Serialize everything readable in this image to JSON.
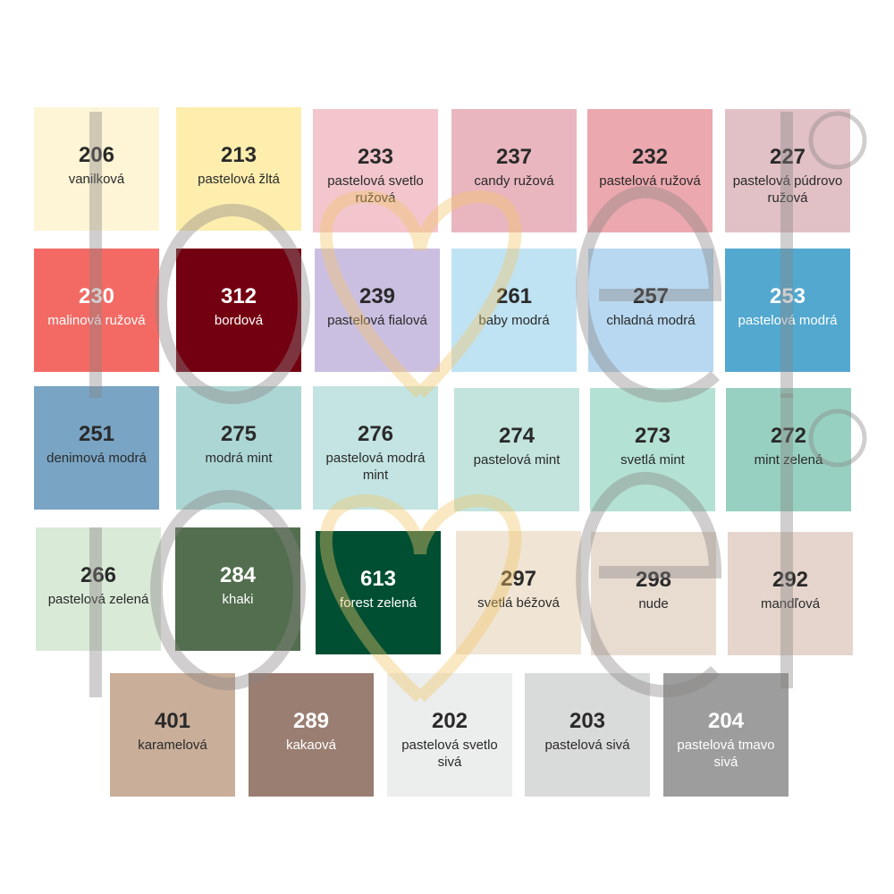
{
  "watermark": {
    "text": "love",
    "mark": "®"
  },
  "swatches": [
    {
      "code": "206",
      "name": "vanilková",
      "color": "#fdf5d6",
      "text": "dark"
    },
    {
      "code": "213",
      "name": "pastelová žltá",
      "color": "#fdeeae",
      "text": "dark"
    },
    {
      "code": "233",
      "name": "pastelová svetlo ružová",
      "color": "#f2c6cc",
      "text": "dark"
    },
    {
      "code": "237",
      "name": "candy ružová",
      "color": "#e9b6bf",
      "text": "dark"
    },
    {
      "code": "232",
      "name": "pastelová ružová",
      "color": "#eba8ae",
      "text": "dark"
    },
    {
      "code": "227",
      "name": "pastelová púdrovo ružová",
      "color": "#e2c1c6",
      "text": "dark"
    },
    {
      "code": "230",
      "name": "malinová ružová",
      "color": "#f36a64",
      "text": "light"
    },
    {
      "code": "312",
      "name": "bordová",
      "color": "#730010",
      "text": "light"
    },
    {
      "code": "239",
      "name": "pastelová fialová",
      "color": "#cbbfe1",
      "text": "dark"
    },
    {
      "code": "261",
      "name": "baby modrá",
      "color": "#c0e3f3",
      "text": "dark"
    },
    {
      "code": "257",
      "name": "chladná modrá",
      "color": "#b7d8f0",
      "text": "dark"
    },
    {
      "code": "253",
      "name": "pastelová modrá",
      "color": "#52a8cf",
      "text": "light"
    },
    {
      "code": "251",
      "name": "denimová modrá",
      "color": "#79a4c4",
      "text": "dark"
    },
    {
      "code": "275",
      "name": "modrá mint",
      "color": "#acd6d4",
      "text": "dark"
    },
    {
      "code": "276",
      "name": "pastelová modrá mint",
      "color": "#c3e4e2",
      "text": "dark"
    },
    {
      "code": "274",
      "name": "pastelová mint",
      "color": "#c2e4dc",
      "text": "dark"
    },
    {
      "code": "273",
      "name": "svetlá mint",
      "color": "#b3e1d3",
      "text": "dark"
    },
    {
      "code": "272",
      "name": "mint zelená",
      "color": "#97d0c0",
      "text": "dark"
    },
    {
      "code": "266",
      "name": "pastelová zelená",
      "color": "#d9ead7",
      "text": "dark"
    },
    {
      "code": "284",
      "name": "khaki",
      "color": "#536e4f",
      "text": "light"
    },
    {
      "code": "613",
      "name": "forest zelená",
      "color": "#004f32",
      "text": "light"
    },
    {
      "code": "297",
      "name": "svetlá béžová",
      "color": "#f0e5d4",
      "text": "dark"
    },
    {
      "code": "298",
      "name": "nude",
      "color": "#e8dcd1",
      "text": "dark"
    },
    {
      "code": "292",
      "name": "mandľová",
      "color": "#e5d5cc",
      "text": "dark"
    },
    {
      "code": "401",
      "name": "karamelová",
      "color": "#c9ae99",
      "text": "dark"
    },
    {
      "code": "289",
      "name": "kakaová",
      "color": "#9a7e72",
      "text": "light"
    },
    {
      "code": "202",
      "name": "pastelová svetlo sivá",
      "color": "#eceeed",
      "text": "dark"
    },
    {
      "code": "203",
      "name": "pastelová sivá",
      "color": "#d9dbda",
      "text": "dark"
    },
    {
      "code": "204",
      "name": "pastelová tmavo sivá",
      "color": "#9c9d9c",
      "text": "light"
    }
  ]
}
